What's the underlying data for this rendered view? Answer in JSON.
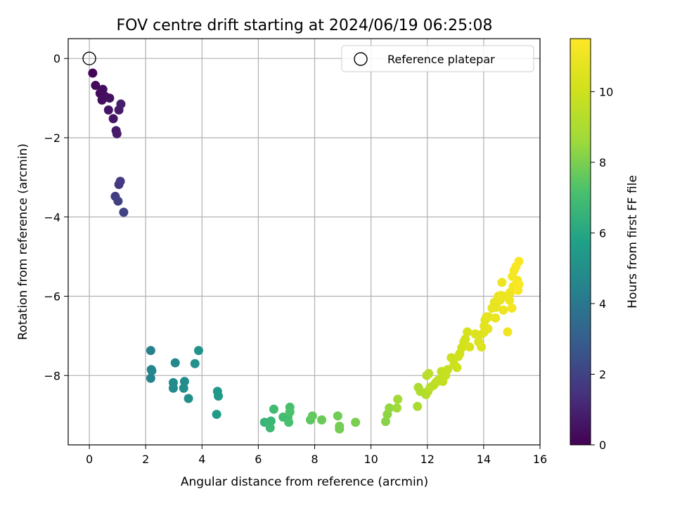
{
  "chart_data": {
    "type": "scatter",
    "title": "FOV centre drift starting at 2024/06/19 06:25:08",
    "xlabel": "Angular distance from reference (arcmin)",
    "ylabel": "Rotation from reference (arcmin)",
    "colorbar_label": "Hours from first FF file",
    "colormap": "viridis",
    "xlim": [
      -0.75,
      16
    ],
    "ylim": [
      -9.75,
      0.5
    ],
    "clim": [
      0,
      11.5
    ],
    "xticks": [
      0,
      2,
      4,
      6,
      8,
      10,
      12,
      14,
      16
    ],
    "yticks": [
      0,
      -2,
      -4,
      -6,
      -8
    ],
    "cticks": [
      0,
      2,
      4,
      6,
      8,
      10
    ],
    "grid": true,
    "legend": {
      "position": "top-right",
      "label": "Reference platepar"
    },
    "reference": {
      "x": 0,
      "y": 0
    },
    "points": [
      {
        "x": 0.12,
        "y": -0.37,
        "c": 0.1
      },
      {
        "x": 0.22,
        "y": -0.68,
        "c": 0.2
      },
      {
        "x": 0.38,
        "y": -0.88,
        "c": 0.3
      },
      {
        "x": 0.48,
        "y": -0.78,
        "c": 0.35
      },
      {
        "x": 0.45,
        "y": -1.05,
        "c": 0.4
      },
      {
        "x": 0.55,
        "y": -0.95,
        "c": 0.45
      },
      {
        "x": 0.72,
        "y": -1.0,
        "c": 0.5
      },
      {
        "x": 0.68,
        "y": -1.3,
        "c": 0.55
      },
      {
        "x": 0.85,
        "y": -1.52,
        "c": 0.6
      },
      {
        "x": 0.95,
        "y": -1.82,
        "c": 0.7
      },
      {
        "x": 0.98,
        "y": -1.9,
        "c": 0.75
      },
      {
        "x": 1.05,
        "y": -1.3,
        "c": 0.8
      },
      {
        "x": 1.12,
        "y": -1.15,
        "c": 0.85
      },
      {
        "x": 1.05,
        "y": -3.18,
        "c": 1.6
      },
      {
        "x": 1.1,
        "y": -3.1,
        "c": 1.7
      },
      {
        "x": 0.92,
        "y": -3.48,
        "c": 1.8
      },
      {
        "x": 1.02,
        "y": -3.6,
        "c": 1.9
      },
      {
        "x": 1.22,
        "y": -3.88,
        "c": 2.0
      },
      {
        "x": 2.18,
        "y": -7.37,
        "c": 4.4
      },
      {
        "x": 2.22,
        "y": -7.88,
        "c": 4.5
      },
      {
        "x": 2.18,
        "y": -8.07,
        "c": 4.5
      },
      {
        "x": 2.2,
        "y": -7.85,
        "c": 4.6
      },
      {
        "x": 3.05,
        "y": -7.68,
        "c": 4.7
      },
      {
        "x": 2.98,
        "y": -8.18,
        "c": 4.8
      },
      {
        "x": 2.98,
        "y": -8.32,
        "c": 4.8
      },
      {
        "x": 3.38,
        "y": -8.15,
        "c": 4.9
      },
      {
        "x": 3.35,
        "y": -8.32,
        "c": 5.0
      },
      {
        "x": 3.52,
        "y": -8.58,
        "c": 5.0
      },
      {
        "x": 3.75,
        "y": -7.7,
        "c": 5.1
      },
      {
        "x": 3.88,
        "y": -7.37,
        "c": 5.1
      },
      {
        "x": 4.55,
        "y": -8.4,
        "c": 5.4
      },
      {
        "x": 4.58,
        "y": -8.52,
        "c": 5.4
      },
      {
        "x": 4.52,
        "y": -8.98,
        "c": 5.5
      },
      {
        "x": 6.22,
        "y": -9.18,
        "c": 6.6
      },
      {
        "x": 6.38,
        "y": -9.18,
        "c": 6.7
      },
      {
        "x": 6.45,
        "y": -9.15,
        "c": 6.7
      },
      {
        "x": 6.42,
        "y": -9.32,
        "c": 6.8
      },
      {
        "x": 6.55,
        "y": -8.85,
        "c": 6.9
      },
      {
        "x": 6.88,
        "y": -9.05,
        "c": 7.0
      },
      {
        "x": 7.05,
        "y": -9.05,
        "c": 7.0
      },
      {
        "x": 7.08,
        "y": -9.18,
        "c": 7.1
      },
      {
        "x": 7.12,
        "y": -8.8,
        "c": 7.1
      },
      {
        "x": 7.12,
        "y": -8.92,
        "c": 7.2
      },
      {
        "x": 7.85,
        "y": -9.12,
        "c": 7.5
      },
      {
        "x": 7.92,
        "y": -9.02,
        "c": 7.6
      },
      {
        "x": 8.25,
        "y": -9.12,
        "c": 7.7
      },
      {
        "x": 8.82,
        "y": -9.02,
        "c": 7.8
      },
      {
        "x": 8.88,
        "y": -9.28,
        "c": 7.9
      },
      {
        "x": 8.88,
        "y": -9.35,
        "c": 7.9
      },
      {
        "x": 9.45,
        "y": -9.18,
        "c": 8.0
      },
      {
        "x": 10.52,
        "y": -9.16,
        "c": 8.2
      },
      {
        "x": 10.58,
        "y": -8.98,
        "c": 8.3
      },
      {
        "x": 10.65,
        "y": -8.82,
        "c": 8.4
      },
      {
        "x": 10.92,
        "y": -8.82,
        "c": 8.6
      },
      {
        "x": 10.95,
        "y": -8.6,
        "c": 8.7
      },
      {
        "x": 11.65,
        "y": -8.78,
        "c": 8.9
      },
      {
        "x": 11.68,
        "y": -8.3,
        "c": 9.0
      },
      {
        "x": 11.75,
        "y": -8.4,
        "c": 9.1
      },
      {
        "x": 11.95,
        "y": -8.48,
        "c": 9.2
      },
      {
        "x": 12.02,
        "y": -8.4,
        "c": 9.3
      },
      {
        "x": 11.98,
        "y": -8.0,
        "c": 9.3
      },
      {
        "x": 12.05,
        "y": -7.95,
        "c": 9.4
      },
      {
        "x": 12.1,
        "y": -8.3,
        "c": 9.4
      },
      {
        "x": 12.22,
        "y": -8.25,
        "c": 9.5
      },
      {
        "x": 12.3,
        "y": -8.18,
        "c": 9.5
      },
      {
        "x": 12.38,
        "y": -8.12,
        "c": 9.6
      },
      {
        "x": 12.45,
        "y": -8.1,
        "c": 9.6
      },
      {
        "x": 12.5,
        "y": -7.9,
        "c": 9.7
      },
      {
        "x": 12.55,
        "y": -8.15,
        "c": 9.7
      },
      {
        "x": 12.65,
        "y": -8.0,
        "c": 9.8
      },
      {
        "x": 12.72,
        "y": -7.85,
        "c": 9.8
      },
      {
        "x": 12.85,
        "y": -7.55,
        "c": 9.9
      },
      {
        "x": 12.95,
        "y": -7.72,
        "c": 9.9
      },
      {
        "x": 13.05,
        "y": -7.8,
        "c": 10.0
      },
      {
        "x": 13.1,
        "y": -7.52,
        "c": 10.0
      },
      {
        "x": 13.15,
        "y": -7.45,
        "c": 10.1
      },
      {
        "x": 13.22,
        "y": -7.3,
        "c": 10.1
      },
      {
        "x": 13.3,
        "y": -7.15,
        "c": 10.2
      },
      {
        "x": 13.35,
        "y": -7.08,
        "c": 10.2
      },
      {
        "x": 13.42,
        "y": -6.9,
        "c": 10.3
      },
      {
        "x": 13.5,
        "y": -7.28,
        "c": 10.3
      },
      {
        "x": 13.7,
        "y": -6.95,
        "c": 10.4
      },
      {
        "x": 13.85,
        "y": -6.98,
        "c": 10.4
      },
      {
        "x": 13.82,
        "y": -7.15,
        "c": 10.5
      },
      {
        "x": 13.92,
        "y": -7.28,
        "c": 10.5
      },
      {
        "x": 14.0,
        "y": -6.92,
        "c": 10.6
      },
      {
        "x": 14.02,
        "y": -6.75,
        "c": 10.6
      },
      {
        "x": 14.05,
        "y": -6.6,
        "c": 10.6
      },
      {
        "x": 14.1,
        "y": -6.52,
        "c": 10.7
      },
      {
        "x": 14.18,
        "y": -6.52,
        "c": 10.7
      },
      {
        "x": 14.15,
        "y": -6.82,
        "c": 10.7
      },
      {
        "x": 14.3,
        "y": -6.3,
        "c": 10.8
      },
      {
        "x": 14.38,
        "y": -6.15,
        "c": 10.8
      },
      {
        "x": 14.45,
        "y": -6.28,
        "c": 10.8
      },
      {
        "x": 14.42,
        "y": -6.55,
        "c": 10.9
      },
      {
        "x": 14.52,
        "y": -6.0,
        "c": 10.9
      },
      {
        "x": 14.58,
        "y": -6.1,
        "c": 10.9
      },
      {
        "x": 14.62,
        "y": -5.98,
        "c": 11.0
      },
      {
        "x": 14.65,
        "y": -5.65,
        "c": 11.0
      },
      {
        "x": 14.7,
        "y": -6.35,
        "c": 11.0
      },
      {
        "x": 14.78,
        "y": -6.0,
        "c": 11.0
      },
      {
        "x": 14.85,
        "y": -6.9,
        "c": 11.1
      },
      {
        "x": 14.92,
        "y": -6.1,
        "c": 11.1
      },
      {
        "x": 14.95,
        "y": -5.9,
        "c": 11.1
      },
      {
        "x": 15.0,
        "y": -6.3,
        "c": 11.2
      },
      {
        "x": 15.05,
        "y": -5.75,
        "c": 11.2
      },
      {
        "x": 15.02,
        "y": -5.5,
        "c": 11.2
      },
      {
        "x": 15.08,
        "y": -5.35,
        "c": 11.3
      },
      {
        "x": 15.15,
        "y": -5.25,
        "c": 11.3
      },
      {
        "x": 15.2,
        "y": -5.6,
        "c": 11.3
      },
      {
        "x": 15.22,
        "y": -5.85,
        "c": 11.4
      },
      {
        "x": 15.25,
        "y": -5.12,
        "c": 11.4
      },
      {
        "x": 15.25,
        "y": -5.7,
        "c": 11.4
      }
    ]
  }
}
